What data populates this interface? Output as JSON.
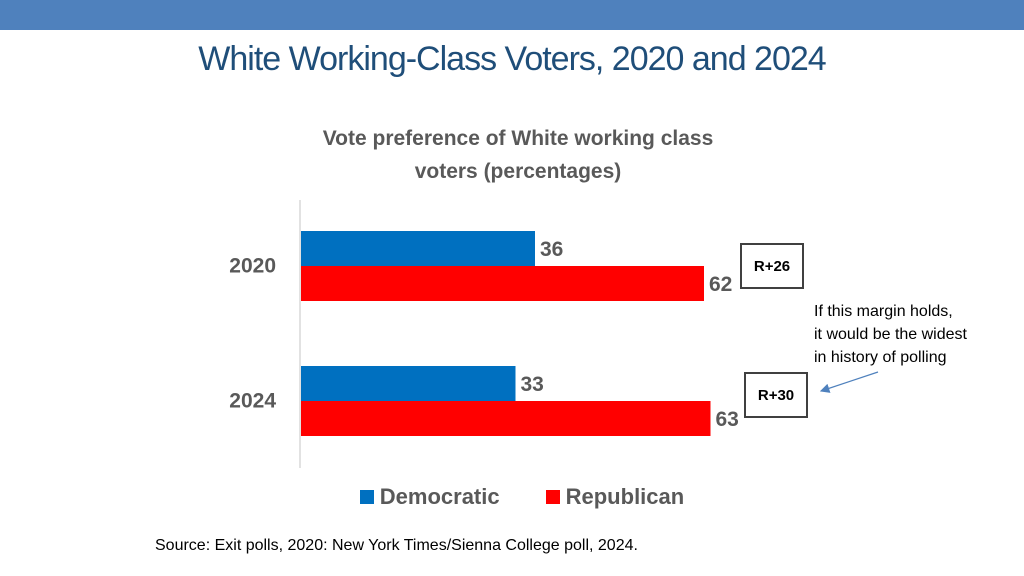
{
  "slide": {
    "title": "White Working-Class Voters, 2020 and 2024",
    "source": "Source: Exit polls, 2020: New York Times/Sienna College poll, 2024."
  },
  "annotations": {
    "margins": [
      "R+26",
      "R+30"
    ],
    "note_lines": [
      "If this margin holds,",
      "it would be the widest",
      "in history of polling"
    ]
  },
  "colors": {
    "democratic": "#0070c0",
    "republican": "#ff0000",
    "axis": "#d9d9d9",
    "label": "#595959",
    "arrow": "#4f81bd"
  },
  "chart_data": {
    "type": "bar",
    "orientation": "horizontal",
    "title": "Vote preference of White working class voters (percentages)",
    "title_lines": [
      "Vote preference of White working class",
      "voters (percentages)"
    ],
    "categories": [
      "2020",
      "2024"
    ],
    "series": [
      {
        "name": "Democratic",
        "values": [
          36,
          33
        ],
        "color": "#0070c0"
      },
      {
        "name": "Republican",
        "values": [
          62,
          63
        ],
        "color": "#ff0000"
      }
    ],
    "xlim": [
      0,
      100
    ],
    "grid": false,
    "legend": "bottom",
    "data_labels": true
  }
}
